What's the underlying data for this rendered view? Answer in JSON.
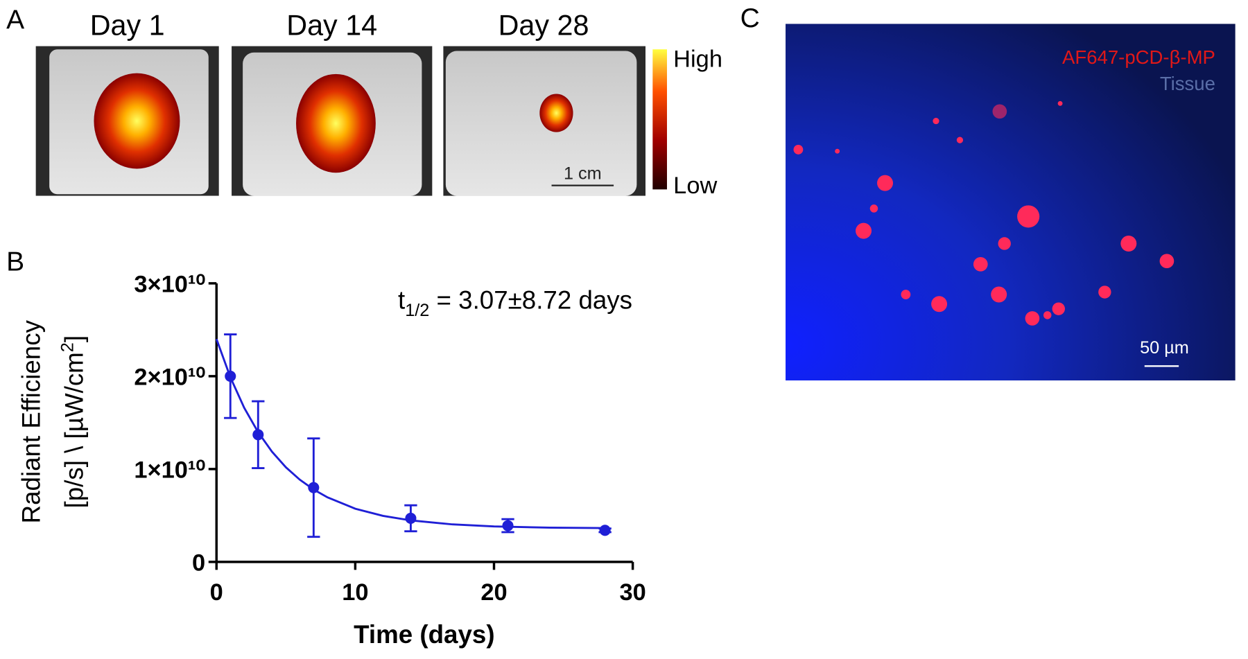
{
  "panels": {
    "a": "A",
    "b": "B",
    "c": "C"
  },
  "panel_a": {
    "days": [
      "Day 1",
      "Day 14",
      "Day 28"
    ],
    "colorbar_high": "High",
    "colorbar_low": "Low",
    "scale_bar": "1 cm"
  },
  "panel_c": {
    "legend_red": "AF647-pCD-β-MP",
    "legend_blue": "Tissue",
    "scale_bar": "50 µm"
  },
  "chart_data": {
    "type": "line",
    "x_label": "Time (days)",
    "y_label": {
      "line1": "Radiant Efficiency",
      "line2": "[p/s] \\ [µW/cm",
      "line2_sup": "2",
      "line2_end": "]"
    },
    "annotation": {
      "symbol": "t",
      "subscript": "1/2",
      "text": " = 3.07±8.72 days"
    },
    "xlim": [
      0,
      30
    ],
    "xticks": [
      0,
      10,
      20,
      30
    ],
    "ylim": [
      0,
      30000000000.0
    ],
    "yticks": [
      0,
      {
        "value": 10000000000.0,
        "label": "1×10¹⁰"
      },
      {
        "value": 20000000000.0,
        "label": "2×10¹⁰"
      },
      {
        "value": 30000000000.0,
        "label": "3×10¹⁰"
      }
    ],
    "color": "#1f1fd6",
    "x": [
      1,
      3,
      7,
      14,
      21,
      28
    ],
    "values": [
      20000000000.0,
      13700000000.0,
      8000000000.0,
      4700000000.0,
      3900000000.0,
      3400000000.0
    ],
    "errors": [
      4500000000.0,
      3600000000.0,
      5300000000.0,
      1400000000.0,
      700000000.0,
      200000000.0
    ],
    "fit": {
      "x": [
        0,
        1,
        2,
        3,
        4,
        5,
        6,
        7,
        8,
        10,
        12,
        14,
        17,
        20,
        24,
        28
      ],
      "values": [
        24000000000.0,
        19880000000.0,
        16590000000.0,
        13970000000.0,
        11870000000.0,
        10190000000.0,
        8860000000.0,
        7800000000.0,
        6950000000.0,
        5730000000.0,
        4960000000.0,
        4470000000.0,
        4040000000.0,
        3820000000.0,
        3690000000.0,
        3640000000.0
      ]
    }
  }
}
